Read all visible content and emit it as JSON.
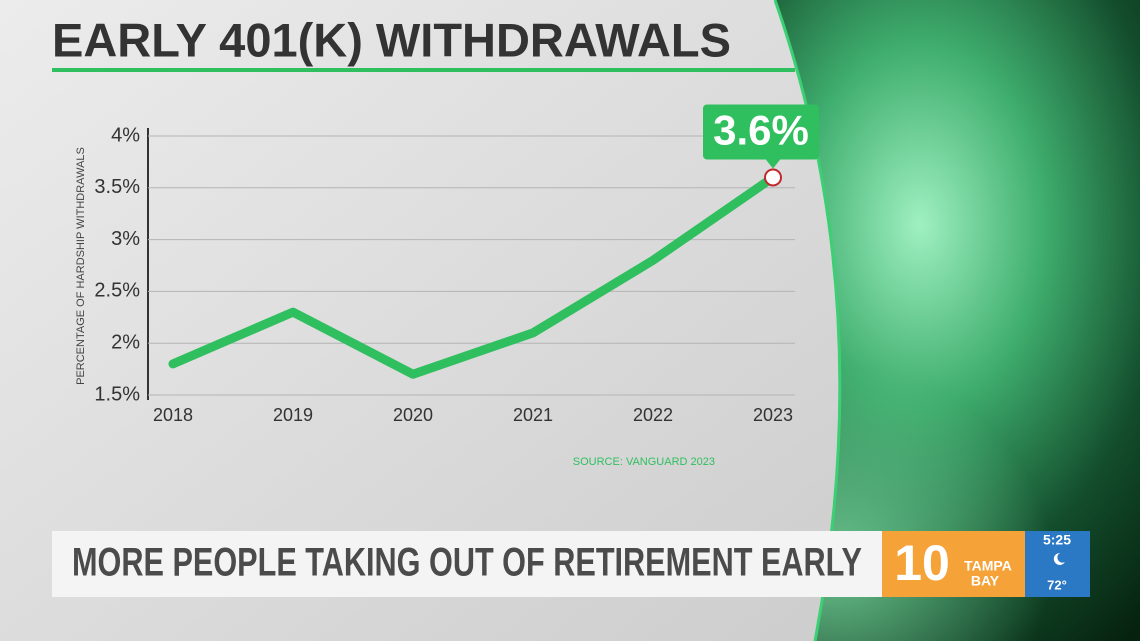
{
  "chart_data": {
    "type": "line",
    "title": "EARLY 401(K) WITHDRAWALS",
    "y_label": "PERCENTAGE OF HARDSHIP WITHDRAWALS",
    "source": "SOURCE: VANGUARD 2023",
    "categories": [
      "2018",
      "2019",
      "2020",
      "2021",
      "2022",
      "2023"
    ],
    "values": [
      1.8,
      2.3,
      1.7,
      2.1,
      2.8,
      3.6
    ],
    "value_labels": [
      null,
      null,
      null,
      null,
      null,
      "3.6%"
    ],
    "color": "#2fbf5f",
    "ylim": [
      1.5,
      4
    ],
    "yticks": [
      {
        "value": 1.5,
        "label": "1.5%"
      },
      {
        "value": 2,
        "label": "2%"
      },
      {
        "value": 2.5,
        "label": "2.5%"
      },
      {
        "value": 3,
        "label": "3%"
      },
      {
        "value": 3.5,
        "label": "3.5%"
      },
      {
        "value": 4,
        "label": "4%"
      }
    ],
    "grid": true
  },
  "lower_third": {
    "headline": "MORE PEOPLE TAKING OUT OF RETIREMENT EARLY",
    "logo_number": "10",
    "logo_line1": "TAMPA",
    "logo_line2": "BAY",
    "time": "5:25",
    "temperature": "72°"
  }
}
